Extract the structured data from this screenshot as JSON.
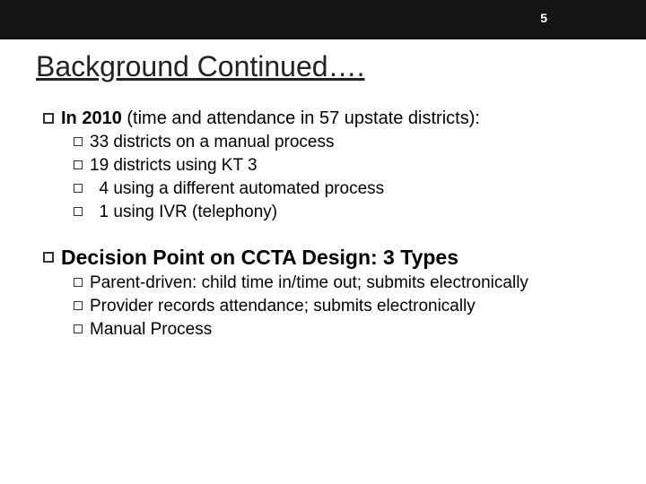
{
  "header": {
    "page_number": "5",
    "bg_color": "#131313",
    "text_color": "#ffffff"
  },
  "title": "Background Continued….",
  "section1": {
    "lead_bold": "In 2010",
    "lead_rest": " (time and attendance in 57 upstate districts):",
    "items": [
      "33 districts on a manual process",
      "19 districts using KT 3",
      "  4 using a different automated process",
      "  1 using IVR (telephony)"
    ]
  },
  "section2": {
    "heading": "Decision Point on CCTA Design: 3 Types",
    "items": [
      "Parent-driven: child time in/time out; submits electronically",
      "Provider records attendance; submits electronically",
      "Manual Process"
    ]
  },
  "colors": {
    "background": "#ffffff",
    "text": "#000000",
    "bullet_border": "#333333"
  }
}
